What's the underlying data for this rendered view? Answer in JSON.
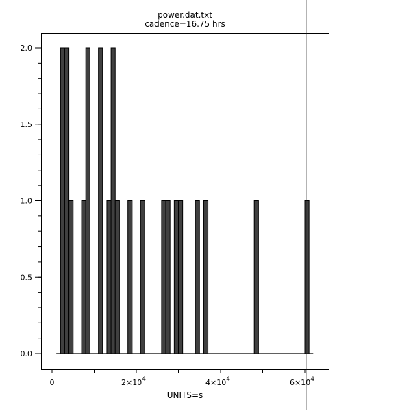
{
  "chart_data": {
    "type": "bar",
    "style": "step-histogram",
    "title": "power.dat.txt",
    "subtitle": "cadence=16.75 hrs",
    "xlabel": "UNITS=s",
    "ylabel": "",
    "xlim": [
      -2600,
      65700
    ],
    "ylim": [
      -0.1,
      2.1
    ],
    "bin_width": 1000,
    "baseline_range": [
      1000,
      62000
    ],
    "bins": [
      {
        "x": 2000,
        "count": 2
      },
      {
        "x": 3000,
        "count": 2
      },
      {
        "x": 4000,
        "count": 1
      },
      {
        "x": 7000,
        "count": 1
      },
      {
        "x": 8000,
        "count": 2
      },
      {
        "x": 11000,
        "count": 2
      },
      {
        "x": 13000,
        "count": 1
      },
      {
        "x": 14000,
        "count": 2
      },
      {
        "x": 15000,
        "count": 1
      },
      {
        "x": 18000,
        "count": 1
      },
      {
        "x": 21000,
        "count": 1
      },
      {
        "x": 26000,
        "count": 1
      },
      {
        "x": 27000,
        "count": 1
      },
      {
        "x": 29000,
        "count": 1
      },
      {
        "x": 30000,
        "count": 1
      },
      {
        "x": 34000,
        "count": 1
      },
      {
        "x": 36000,
        "count": 1
      },
      {
        "x": 48000,
        "count": 1
      },
      {
        "x": 60000,
        "count": 1
      }
    ],
    "marker_line_x": 60300,
    "y_ticks": [
      {
        "v": 0,
        "label": "0.0"
      },
      {
        "v": 0.5,
        "label": "0.5"
      },
      {
        "v": 1,
        "label": "1.0"
      },
      {
        "v": 1.5,
        "label": "1.5"
      },
      {
        "v": 2,
        "label": "2.0"
      }
    ],
    "y_minor_step": 0.1,
    "x_ticks": [
      {
        "v": 0,
        "mant": "0",
        "exp": ""
      },
      {
        "v": 20000,
        "mant": "2×10",
        "exp": "4"
      },
      {
        "v": 40000,
        "mant": "4×10",
        "exp": "4"
      },
      {
        "v": 60000,
        "mant": "6×10",
        "exp": "4"
      }
    ],
    "x_minor_step": 10000,
    "grid": false,
    "colors": {
      "bar_fill": "#404040",
      "bar_edge": "#000000"
    }
  }
}
